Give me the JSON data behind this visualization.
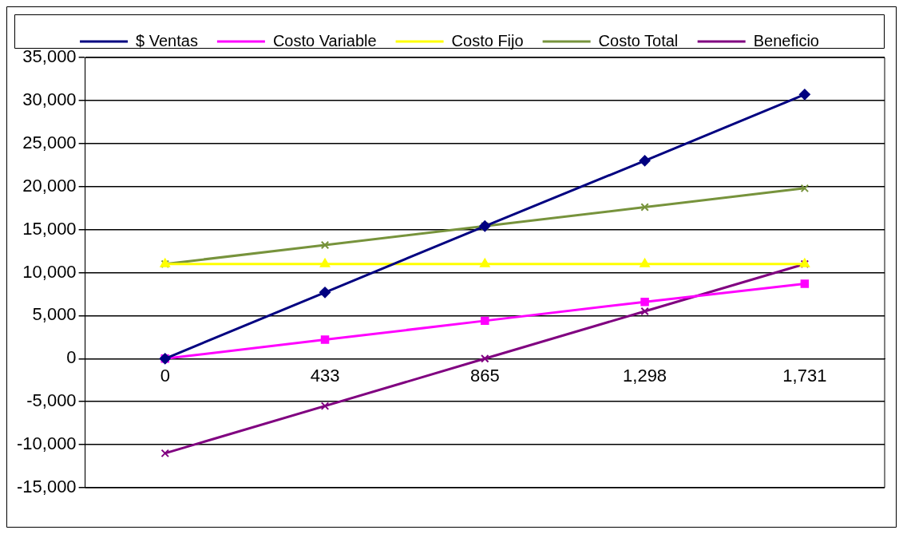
{
  "chart_data": {
    "type": "line",
    "categories": [
      "0",
      "433",
      "865",
      "1,298",
      "1,731"
    ],
    "series": [
      {
        "name": "$ Ventas",
        "color": "#000080",
        "marker": "diamond",
        "values": [
          0,
          7700,
          15400,
          23000,
          30700
        ]
      },
      {
        "name": "Costo Variable",
        "color": "#ff00ff",
        "marker": "square",
        "values": [
          0,
          2200,
          4400,
          6600,
          8700
        ]
      },
      {
        "name": "Costo Fijo",
        "color": "#ffff00",
        "marker": "triangle",
        "values": [
          11000,
          11000,
          11000,
          11000,
          11000
        ]
      },
      {
        "name": "Costo Total",
        "color": "#77933c",
        "marker": "cross",
        "values": [
          11000,
          13200,
          15400,
          17600,
          19800
        ]
      },
      {
        "name": "Beneficio",
        "color": "#800080",
        "marker": "cross",
        "values": [
          -11000,
          -5500,
          0,
          5500,
          11000
        ]
      }
    ],
    "ylim": [
      -15000,
      35000
    ],
    "yticks": [
      {
        "value": -15000,
        "label": "-15,000"
      },
      {
        "value": -10000,
        "label": "-10,000"
      },
      {
        "value": -5000,
        "label": "-5,000"
      },
      0,
      {
        "value": 5000,
        "label": "5,000"
      },
      {
        "value": 10000,
        "label": "10,000"
      },
      {
        "value": 15000,
        "label": "15,000"
      },
      {
        "value": 20000,
        "label": "20,000"
      },
      {
        "value": 25000,
        "label": "25,000"
      },
      {
        "value": 30000,
        "label": "30,000"
      },
      {
        "value": 35000,
        "label": "35,000"
      }
    ],
    "grid": "y",
    "legend": "top",
    "line_style": "solid"
  }
}
